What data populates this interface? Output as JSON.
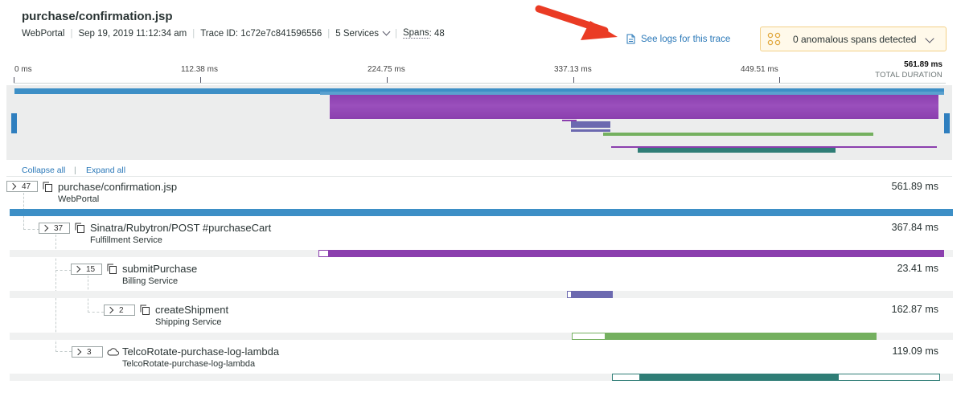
{
  "header": {
    "title": "purchase/confirmation.jsp",
    "app": "WebPortal",
    "date": "Sep 19, 2019 11:12:34 am",
    "trace_id": "Trace ID: 1c72e7c841596556",
    "services": "5 Services",
    "spans_label": "Spans",
    "spans_value": ": 48"
  },
  "actions": {
    "see_logs": "See logs for this trace",
    "anomalies": "0 anomalous spans detected"
  },
  "ruler": {
    "ticks": [
      "0 ms",
      "112.38 ms",
      "224.75 ms",
      "337.13 ms",
      "449.51 ms"
    ],
    "total_value": "561.89 ms",
    "total_label": "TOTAL DURATION"
  },
  "toolbar": {
    "collapse_all": "Collapse all",
    "separator": "|",
    "expand_all": "Expand all"
  },
  "spans": [
    {
      "count": "47",
      "name": "purchase/confirmation.jsp",
      "service": "WebPortal",
      "duration": "561.89 ms"
    },
    {
      "count": "37",
      "name": "Sinatra/Rubytron/POST #purchaseCart",
      "service": "Fulfillment Service",
      "duration": "367.84 ms"
    },
    {
      "count": "15",
      "name": "submitPurchase",
      "service": "Billing Service",
      "duration": "23.41 ms"
    },
    {
      "count": "2",
      "name": "createShipment",
      "service": "Shipping Service",
      "duration": "162.87 ms"
    },
    {
      "count": "3",
      "name": "TelcoRotate-purchase-log-lambda",
      "service": "TelcoRotate-purchase-log-lambda",
      "duration": "119.09 ms"
    }
  ],
  "icons": {
    "arrow": "red-arrow-icon",
    "logs": "document-icon",
    "anomaly": "anomaly-dots-icon",
    "span": "copy-span-icon",
    "lambda": "cloud-icon"
  },
  "colors": {
    "link": "#2a78b8",
    "root": "#3d8fc6",
    "fulfillment": "#8b3fae",
    "billing": "#6c69b0",
    "shipping": "#74b05f",
    "lambda": "#2f7d76",
    "arrow": "#ea3b24"
  }
}
